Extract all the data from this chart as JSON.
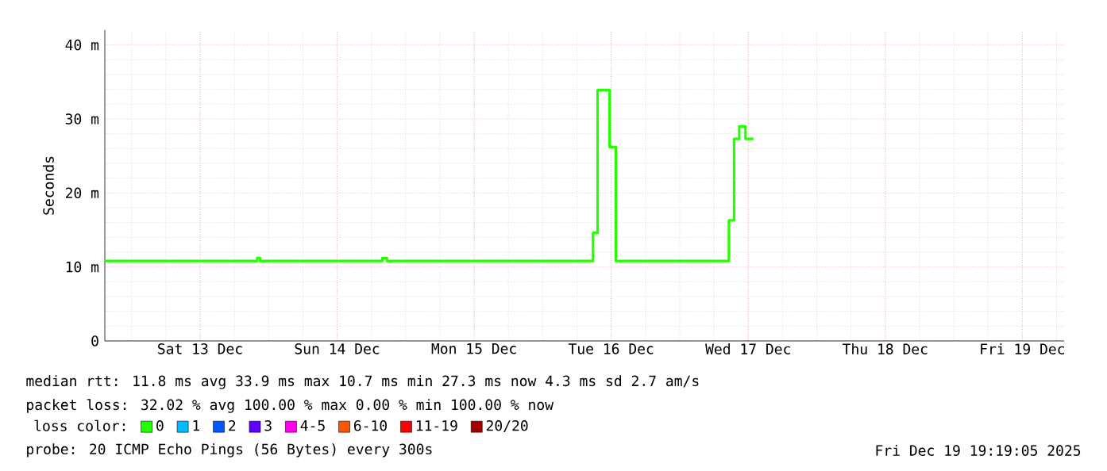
{
  "chart_data": {
    "type": "step",
    "ylabel": "Seconds",
    "xlim": [
      "2025-12-12T19:19",
      "2025-12-19T19:19"
    ],
    "xticks": [
      {
        "value": "2025-12-13T12:00",
        "label": "Sat 13 Dec"
      },
      {
        "value": "2025-12-14T12:00",
        "label": "Sun 14 Dec"
      },
      {
        "value": "2025-12-15T12:00",
        "label": "Mon 15 Dec"
      },
      {
        "value": "2025-12-16T12:00",
        "label": "Tue 16 Dec"
      },
      {
        "value": "2025-12-17T12:00",
        "label": "Wed 17 Dec"
      },
      {
        "value": "2025-12-18T12:00",
        "label": "Thu 18 Dec"
      },
      {
        "value": "2025-12-19T12:00",
        "label": "Fri 19 Dec"
      }
    ],
    "ylim": [
      0,
      42
    ],
    "yticks": [
      0,
      {
        "value": 10,
        "label": "10 m"
      },
      {
        "value": 20,
        "label": "20 m"
      },
      {
        "value": 30,
        "label": "30 m"
      },
      {
        "value": 40,
        "label": "40 m"
      }
    ],
    "grid": true,
    "legend": "bottom",
    "legend_title": "loss color:",
    "series": [
      {
        "name": "0",
        "color": "#26ff00",
        "x": [
          "2025-12-12T19:20",
          "2025-12-13T21:30",
          "2025-12-13T22:00",
          "2025-12-13T22:30",
          "2025-12-14T19:55",
          "2025-12-14T20:43",
          "2025-12-16T08:49",
          "2025-12-16T09:37",
          "2025-12-16T11:43",
          "2025-12-16T12:49",
          "2025-12-17T08:37",
          "2025-12-17T09:31",
          "2025-12-17T10:25",
          "2025-12-17T11:31",
          "2025-12-17T12:55"
        ],
        "values": [
          10.8,
          10.8,
          11.2,
          10.8,
          11.2,
          10.8,
          14.6,
          33.9,
          26.2,
          10.8,
          16.3,
          27.3,
          29.0,
          27.3,
          27.3
        ]
      },
      {
        "name": "1",
        "color": "#00bbff"
      },
      {
        "name": "2",
        "color": "#0059ff"
      },
      {
        "name": "3",
        "color": "#5e00ff"
      },
      {
        "name": "4-5",
        "color": "#ff00ee"
      },
      {
        "name": "6-10",
        "color": "#ff5500"
      },
      {
        "name": "11-19",
        "color": "#ff0000"
      },
      {
        "name": "20/20",
        "color": "#a10000"
      }
    ],
    "annotations": [
      "median rtt:  11.8 ms avg  33.9 ms max  10.7 ms min  27.3 ms now  4.3 ms sd  2.7   am/s",
      "packet loss: 32.02 % avg  100.00 % max  0.00 % min  100.00 % now",
      "probe:       20 ICMP Echo Pings (56 Bytes) every 300s",
      "Fri Dec 19 19:19:05 2025"
    ]
  }
}
